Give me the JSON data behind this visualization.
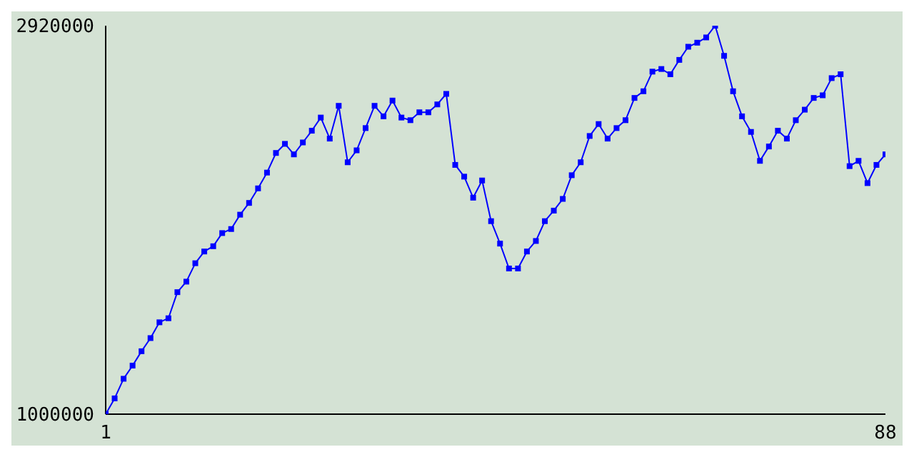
{
  "chart_data": {
    "type": "line",
    "x": [
      1,
      2,
      3,
      4,
      5,
      6,
      7,
      8,
      9,
      10,
      11,
      12,
      13,
      14,
      15,
      16,
      17,
      18,
      19,
      20,
      21,
      22,
      23,
      24,
      25,
      26,
      27,
      28,
      29,
      30,
      31,
      32,
      33,
      34,
      35,
      36,
      37,
      38,
      39,
      40,
      41,
      42,
      43,
      44,
      45,
      46,
      47,
      48,
      49,
      50,
      51,
      52,
      53,
      54,
      55,
      56,
      57,
      58,
      59,
      60,
      61,
      62,
      63,
      64,
      65,
      66,
      67,
      68,
      69,
      70,
      71,
      72,
      73,
      74,
      75,
      76,
      77,
      78,
      79,
      80,
      81,
      82,
      83,
      84,
      85,
      86,
      87,
      88
    ],
    "series": [
      {
        "color": "#0000ff",
        "values": [
          1000000,
          1078000,
          1175000,
          1240000,
          1311000,
          1376000,
          1454000,
          1474000,
          1603000,
          1655000,
          1746000,
          1804000,
          1830000,
          1895000,
          1915000,
          1986000,
          2044000,
          2116000,
          2194000,
          2291000,
          2336000,
          2284000,
          2343000,
          2401000,
          2466000,
          2362000,
          2524000,
          2245000,
          2304000,
          2414000,
          2524000,
          2472000,
          2550000,
          2466000,
          2453000,
          2492000,
          2492000,
          2531000,
          2583000,
          2232000,
          2174000,
          2070000,
          2155000,
          1954000,
          1843000,
          1720000,
          1720000,
          1804000,
          1856000,
          1954000,
          2006000,
          2064000,
          2181000,
          2245000,
          2375000,
          2434000,
          2362000,
          2414000,
          2453000,
          2563000,
          2596000,
          2693000,
          2706000,
          2680000,
          2751000,
          2816000,
          2836000,
          2862000,
          2920000,
          2771000,
          2596000,
          2472000,
          2395000,
          2252000,
          2323000,
          2401000,
          2362000,
          2453000,
          2505000,
          2563000,
          2576000,
          2661000,
          2680000,
          2226000,
          2252000,
          2142000,
          2232000,
          2284000
        ]
      }
    ],
    "xlim": [
      1,
      88
    ],
    "xticks": [
      1,
      88
    ],
    "ylim": [
      1000000,
      2920000
    ],
    "yticks": [
      1000000,
      2920000
    ],
    "marker": "square",
    "line_style": "solid"
  }
}
